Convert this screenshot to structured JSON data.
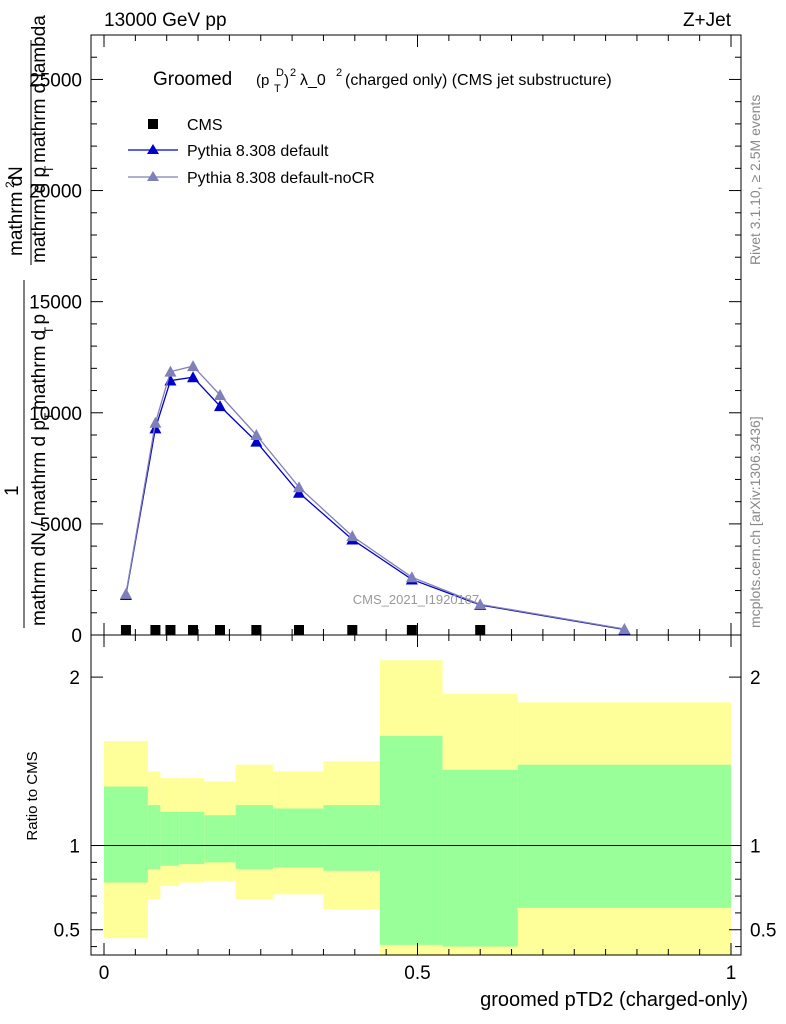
{
  "header": {
    "left": "13000 GeV pp",
    "right": "Z+Jet"
  },
  "side_labels": {
    "rivet": "Rivet 3.1.10, ≥ 2.5M events",
    "mcplots": "mcplots.cern.ch [arXiv:1306.3436]"
  },
  "watermark": "CMS_2021_I1920187",
  "chart_data": {
    "type": "line",
    "title": {
      "main": "Groomed",
      "p": "(p",
      "sup_d": "D",
      "sub_t": "T",
      "close": ")",
      "sup2": "2",
      "lam": "λ_0",
      "sup2b": "2",
      "rest": " (charged only) (CMS jet substructure)"
    },
    "xlabel": "groomed pTD2 (charged-only)",
    "ylabel_lines": [
      "mathrm dN",
      "mathrm d p_T mathrm d lambda",
      "1",
      "mathrm dN / mathrm d p_T mathrm d p_T"
    ],
    "ylabel_main": {
      "num": "mathrm d",
      "num_sup": "2",
      "num_tail": "N",
      "den_a": "mathrm d p",
      "den_a_sub": "T",
      "den_a_tail": " mathrm d lambda",
      "one": "1",
      "den2_a": "mathrm dN / mathrm d p",
      "den2_sub1": "T",
      "den2_b": "mathrm d p",
      "den2_sub2": "T"
    },
    "ylabel_ratio": "Ratio to CMS",
    "xlim": [
      0,
      1
    ],
    "ylim_main": [
      0,
      27000
    ],
    "ylim_ratio": [
      0.35,
      2.25
    ],
    "main_yticks": [
      "0",
      "5000",
      "10000",
      "15000",
      "20000",
      "25000"
    ],
    "ratio_yticks": [
      "0.5",
      "1",
      "2"
    ],
    "xticks": [
      "0",
      "0.5",
      "1"
    ],
    "legend_position": "top-left",
    "series": [
      {
        "name": "CMS",
        "color": "#000000",
        "marker": "square",
        "x": [
          0.035,
          0.082,
          0.106,
          0.142,
          0.185,
          0.243,
          0.311,
          0.396,
          0.491,
          0.6
        ],
        "values": [
          5,
          5,
          5,
          5,
          5,
          5,
          5,
          5,
          5,
          5
        ]
      },
      {
        "name": "Pythia 8.308 default",
        "color": "#0000cc",
        "marker": "triangle",
        "x": [
          0.035,
          0.082,
          0.106,
          0.142,
          0.185,
          0.243,
          0.311,
          0.396,
          0.491,
          0.6,
          0.83
        ],
        "values": [
          1800,
          9300,
          11450,
          11600,
          10300,
          8700,
          6400,
          4300,
          2500,
          1350,
          250
        ]
      },
      {
        "name": "Pythia 8.308 default-noCR",
        "color": "#8080b8",
        "marker": "triangle",
        "x": [
          0.035,
          0.082,
          0.106,
          0.142,
          0.185,
          0.243,
          0.311,
          0.396,
          0.491,
          0.6,
          0.83
        ],
        "values": [
          1850,
          9550,
          11850,
          12100,
          10800,
          9000,
          6650,
          4450,
          2600,
          1380,
          270
        ]
      }
    ],
    "ratio_bands": {
      "edges": [
        0.0,
        0.07,
        0.09,
        0.12,
        0.16,
        0.21,
        0.27,
        0.35,
        0.44,
        0.54,
        0.66,
        1.0
      ],
      "green_lo": [
        0.78,
        0.86,
        0.88,
        0.89,
        0.9,
        0.86,
        0.87,
        0.85,
        0.41,
        0.4,
        0.63
      ],
      "green_hi": [
        1.35,
        1.24,
        1.2,
        1.2,
        1.18,
        1.24,
        1.22,
        1.24,
        1.65,
        1.45,
        1.48
      ],
      "yellow_lo": [
        0.45,
        0.68,
        0.76,
        0.78,
        0.79,
        0.68,
        0.71,
        0.62,
        0.22,
        0.2,
        0.2
      ],
      "yellow_hi": [
        1.62,
        1.44,
        1.4,
        1.4,
        1.38,
        1.48,
        1.44,
        1.5,
        2.1,
        1.9,
        1.85
      ],
      "green_color": "#99ff99",
      "yellow_color": "#ffff99"
    }
  }
}
